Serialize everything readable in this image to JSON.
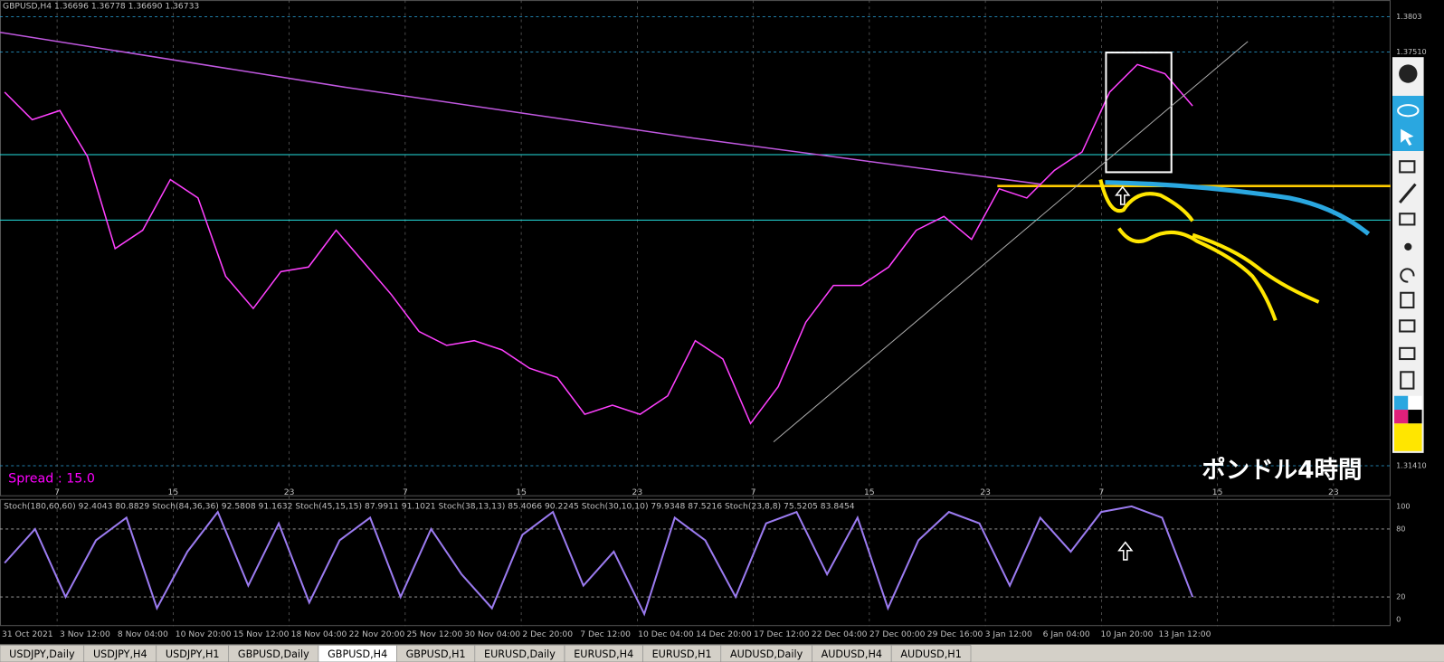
{
  "header": {
    "symbol_quote": "GBPUSD,H4  1.36696 1.36778 1.36690 1.36733"
  },
  "spread": "Spread : 15.0",
  "annotation": "ポンドル4時間",
  "price_axis": {
    "ylim": [
      1.30974,
      1.38274
    ],
    "ticks": [
      1.3803,
      {
        "value": 1.3751,
        "label": "1.37510"
      },
      {
        "value": 1.3141,
        "label": "1.31410"
      }
    ]
  },
  "price_series": {
    "values": [
      1.36917,
      1.3651,
      1.36646,
      1.35967,
      1.3461,
      1.34882,
      1.35628,
      1.35357,
      1.34203,
      1.33728,
      1.34271,
      1.34339,
      1.34882,
      1.34407,
      1.33932,
      1.33389,
      1.33185,
      1.33253,
      1.33118,
      1.32846,
      1.32711,
      1.32168,
      1.32303,
      1.32168,
      1.32439,
      1.33253,
      1.32982,
      1.32032,
      1.32575,
      1.33525,
      1.34068,
      1.34068,
      1.34339,
      1.34882,
      1.35085,
      1.34746,
      1.35492,
      1.35357,
      1.35764,
      1.36035,
      1.36917,
      1.37324,
      1.37189,
      1.36714
    ]
  },
  "long_ma": {
    "values": [
      1.37799,
      1.36985,
      1.36239,
      1.3556
    ]
  },
  "levels": {
    "cyan": [
      1.35995,
      1.35031
    ],
    "yellow": [
      1.35533
    ]
  },
  "day_labels": [
    "7",
    "15",
    "23",
    "7",
    "15",
    "23",
    "7",
    "15",
    "23",
    "7",
    "15",
    "23"
  ],
  "indicator": {
    "title": "Stoch(180,60,60) 92.4043 80.8829  Stoch(84,36,36) 92.5808 91.1632  Stoch(45,15,15) 87.9911 91.1021  Stoch(38,13,13) 85.4066 90.2245  Stoch(30,10,10) 79.9348 87.5216  Stoch(23,8,8) 75.5205 83.8454",
    "ylim": [
      0,
      100
    ],
    "ticks": [
      100,
      80,
      20,
      0
    ],
    "values": [
      50,
      80,
      20,
      70,
      90,
      10,
      60,
      95,
      30,
      85,
      15,
      70,
      90,
      20,
      80,
      40,
      10,
      75,
      95,
      30,
      60,
      5,
      90,
      70,
      20,
      85,
      95,
      40,
      90,
      10,
      70,
      95,
      85,
      30,
      90,
      60,
      95,
      100,
      90,
      20
    ]
  },
  "time_labels": [
    "31 Oct 2021",
    "3 Nov 12:00",
    "8 Nov 04:00",
    "10 Nov 20:00",
    "15 Nov 12:00",
    "18 Nov 04:00",
    "22 Nov 20:00",
    "25 Nov 12:00",
    "30 Nov 04:00",
    "2 Dec 20:00",
    "7 Dec 12:00",
    "10 Dec 04:00",
    "14 Dec 20:00",
    "17 Dec 12:00",
    "22 Dec 04:00",
    "27 Dec 00:00",
    "29 Dec 16:00",
    "3 Jan 12:00",
    "6 Jan 04:00",
    "10 Jan 20:00",
    "13 Jan 12:00"
  ],
  "tabs": [
    "USDJPY,Daily",
    "USDJPY,H4",
    "USDJPY,H1",
    "GBPUSD,Daily",
    "GBPUSD,H4",
    "GBPUSD,H1",
    "EURUSD,Daily",
    "EURUSD,H4",
    "EURUSD,H1",
    "AUDUSD,Daily",
    "AUDUSD,H4",
    "AUDUSD,H1"
  ],
  "active_tab": 4
}
